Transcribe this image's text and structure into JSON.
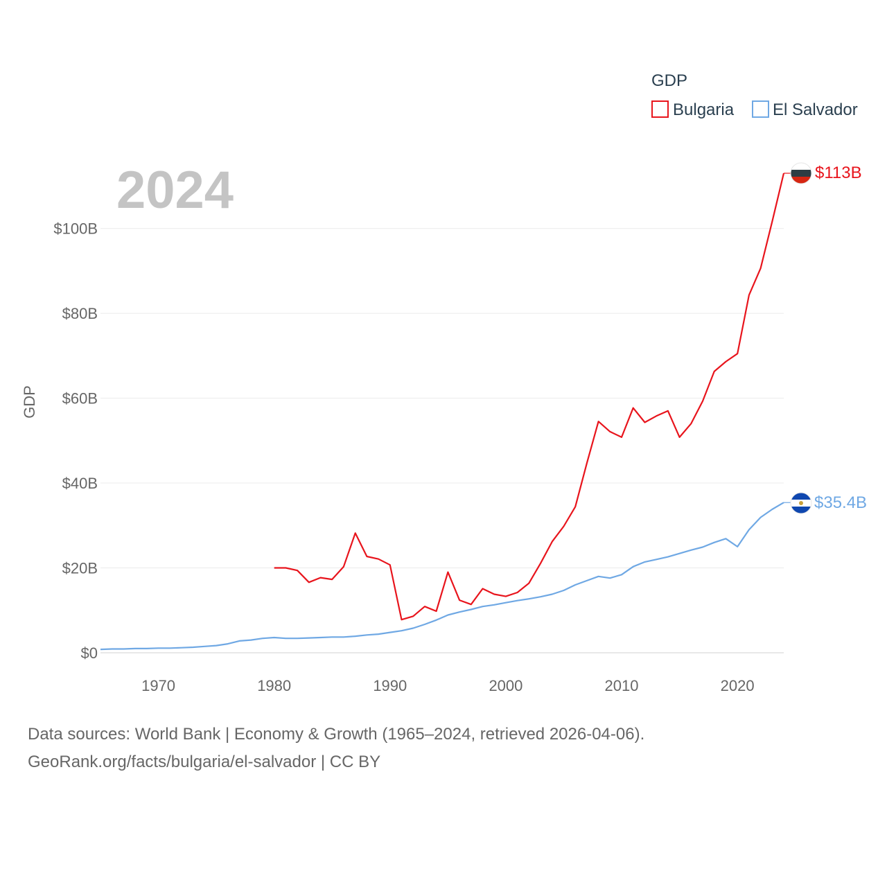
{
  "chart_data": {
    "type": "line",
    "title": "",
    "year_label": "2024",
    "xlabel": "",
    "ylabel": "GDP",
    "xlim": [
      1965,
      2024
    ],
    "ylim": [
      0,
      113
    ],
    "x_ticks": [
      1970,
      1980,
      1990,
      2000,
      2010,
      2020
    ],
    "y_ticks": [
      {
        "value": 0,
        "label": "$0"
      },
      {
        "value": 20,
        "label": "$20B"
      },
      {
        "value": 40,
        "label": "$40B"
      },
      {
        "value": 60,
        "label": "$60B"
      },
      {
        "value": 80,
        "label": "$80B"
      },
      {
        "value": 100,
        "label": "$100B"
      }
    ],
    "grid": true,
    "units": "billion USD",
    "legend": {
      "title": "GDP",
      "position": "top-right",
      "entries": [
        "Bulgaria",
        "El Salvador"
      ]
    },
    "series": [
      {
        "name": "Bulgaria",
        "color": "#e8141c",
        "end_label": "$113B",
        "x": [
          1980,
          1981,
          1982,
          1983,
          1984,
          1985,
          1986,
          1987,
          1988,
          1989,
          1990,
          1991,
          1992,
          1993,
          1994,
          1995,
          1996,
          1997,
          1998,
          1999,
          2000,
          2001,
          2002,
          2003,
          2004,
          2005,
          2006,
          2007,
          2008,
          2009,
          2010,
          2011,
          2012,
          2013,
          2014,
          2015,
          2016,
          2017,
          2018,
          2019,
          2020,
          2021,
          2022,
          2023,
          2024
        ],
        "values": [
          20.0,
          20.0,
          19.4,
          16.6,
          17.7,
          17.3,
          20.3,
          28.2,
          22.7,
          22.1,
          20.7,
          7.8,
          8.6,
          10.9,
          9.8,
          19.0,
          12.4,
          11.4,
          15.1,
          13.8,
          13.3,
          14.2,
          16.4,
          21.1,
          26.2,
          29.8,
          34.4,
          44.7,
          54.5,
          52.1,
          50.8,
          57.7,
          54.3,
          55.8,
          57.0,
          50.8,
          54.0,
          59.3,
          66.3,
          68.6,
          70.5,
          84.3,
          90.6,
          101.6,
          113.0
        ]
      },
      {
        "name": "El Salvador",
        "color": "#6fa8e4",
        "end_label": "$35.4B",
        "x": [
          1965,
          1966,
          1967,
          1968,
          1969,
          1970,
          1971,
          1972,
          1973,
          1974,
          1975,
          1976,
          1977,
          1978,
          1979,
          1980,
          1981,
          1982,
          1983,
          1984,
          1985,
          1986,
          1987,
          1988,
          1989,
          1990,
          1991,
          1992,
          1993,
          1994,
          1995,
          1996,
          1997,
          1998,
          1999,
          2000,
          2001,
          2002,
          2003,
          2004,
          2005,
          2006,
          2007,
          2008,
          2009,
          2010,
          2011,
          2012,
          2013,
          2014,
          2015,
          2016,
          2017,
          2018,
          2019,
          2020,
          2021,
          2022,
          2023,
          2024
        ],
        "values": [
          0.8,
          0.9,
          0.9,
          1.0,
          1.0,
          1.1,
          1.1,
          1.2,
          1.3,
          1.5,
          1.7,
          2.1,
          2.8,
          3.0,
          3.4,
          3.6,
          3.4,
          3.4,
          3.5,
          3.6,
          3.7,
          3.7,
          3.9,
          4.2,
          4.4,
          4.8,
          5.2,
          5.8,
          6.7,
          7.7,
          8.9,
          9.6,
          10.2,
          10.9,
          11.3,
          11.8,
          12.3,
          12.7,
          13.2,
          13.8,
          14.7,
          16.0,
          17.0,
          18.0,
          17.6,
          18.4,
          20.3,
          21.4,
          22.0,
          22.6,
          23.4,
          24.2,
          24.9,
          26.0,
          26.9,
          25.0,
          29.0,
          31.9,
          33.8,
          35.4
        ]
      }
    ]
  },
  "source": {
    "line1": "Data sources: World Bank | Economy & Growth (1965–2024, retrieved 2026-04-06).",
    "line2": "GeoRank.org/facts/bulgaria/el-salvador | CC BY"
  }
}
